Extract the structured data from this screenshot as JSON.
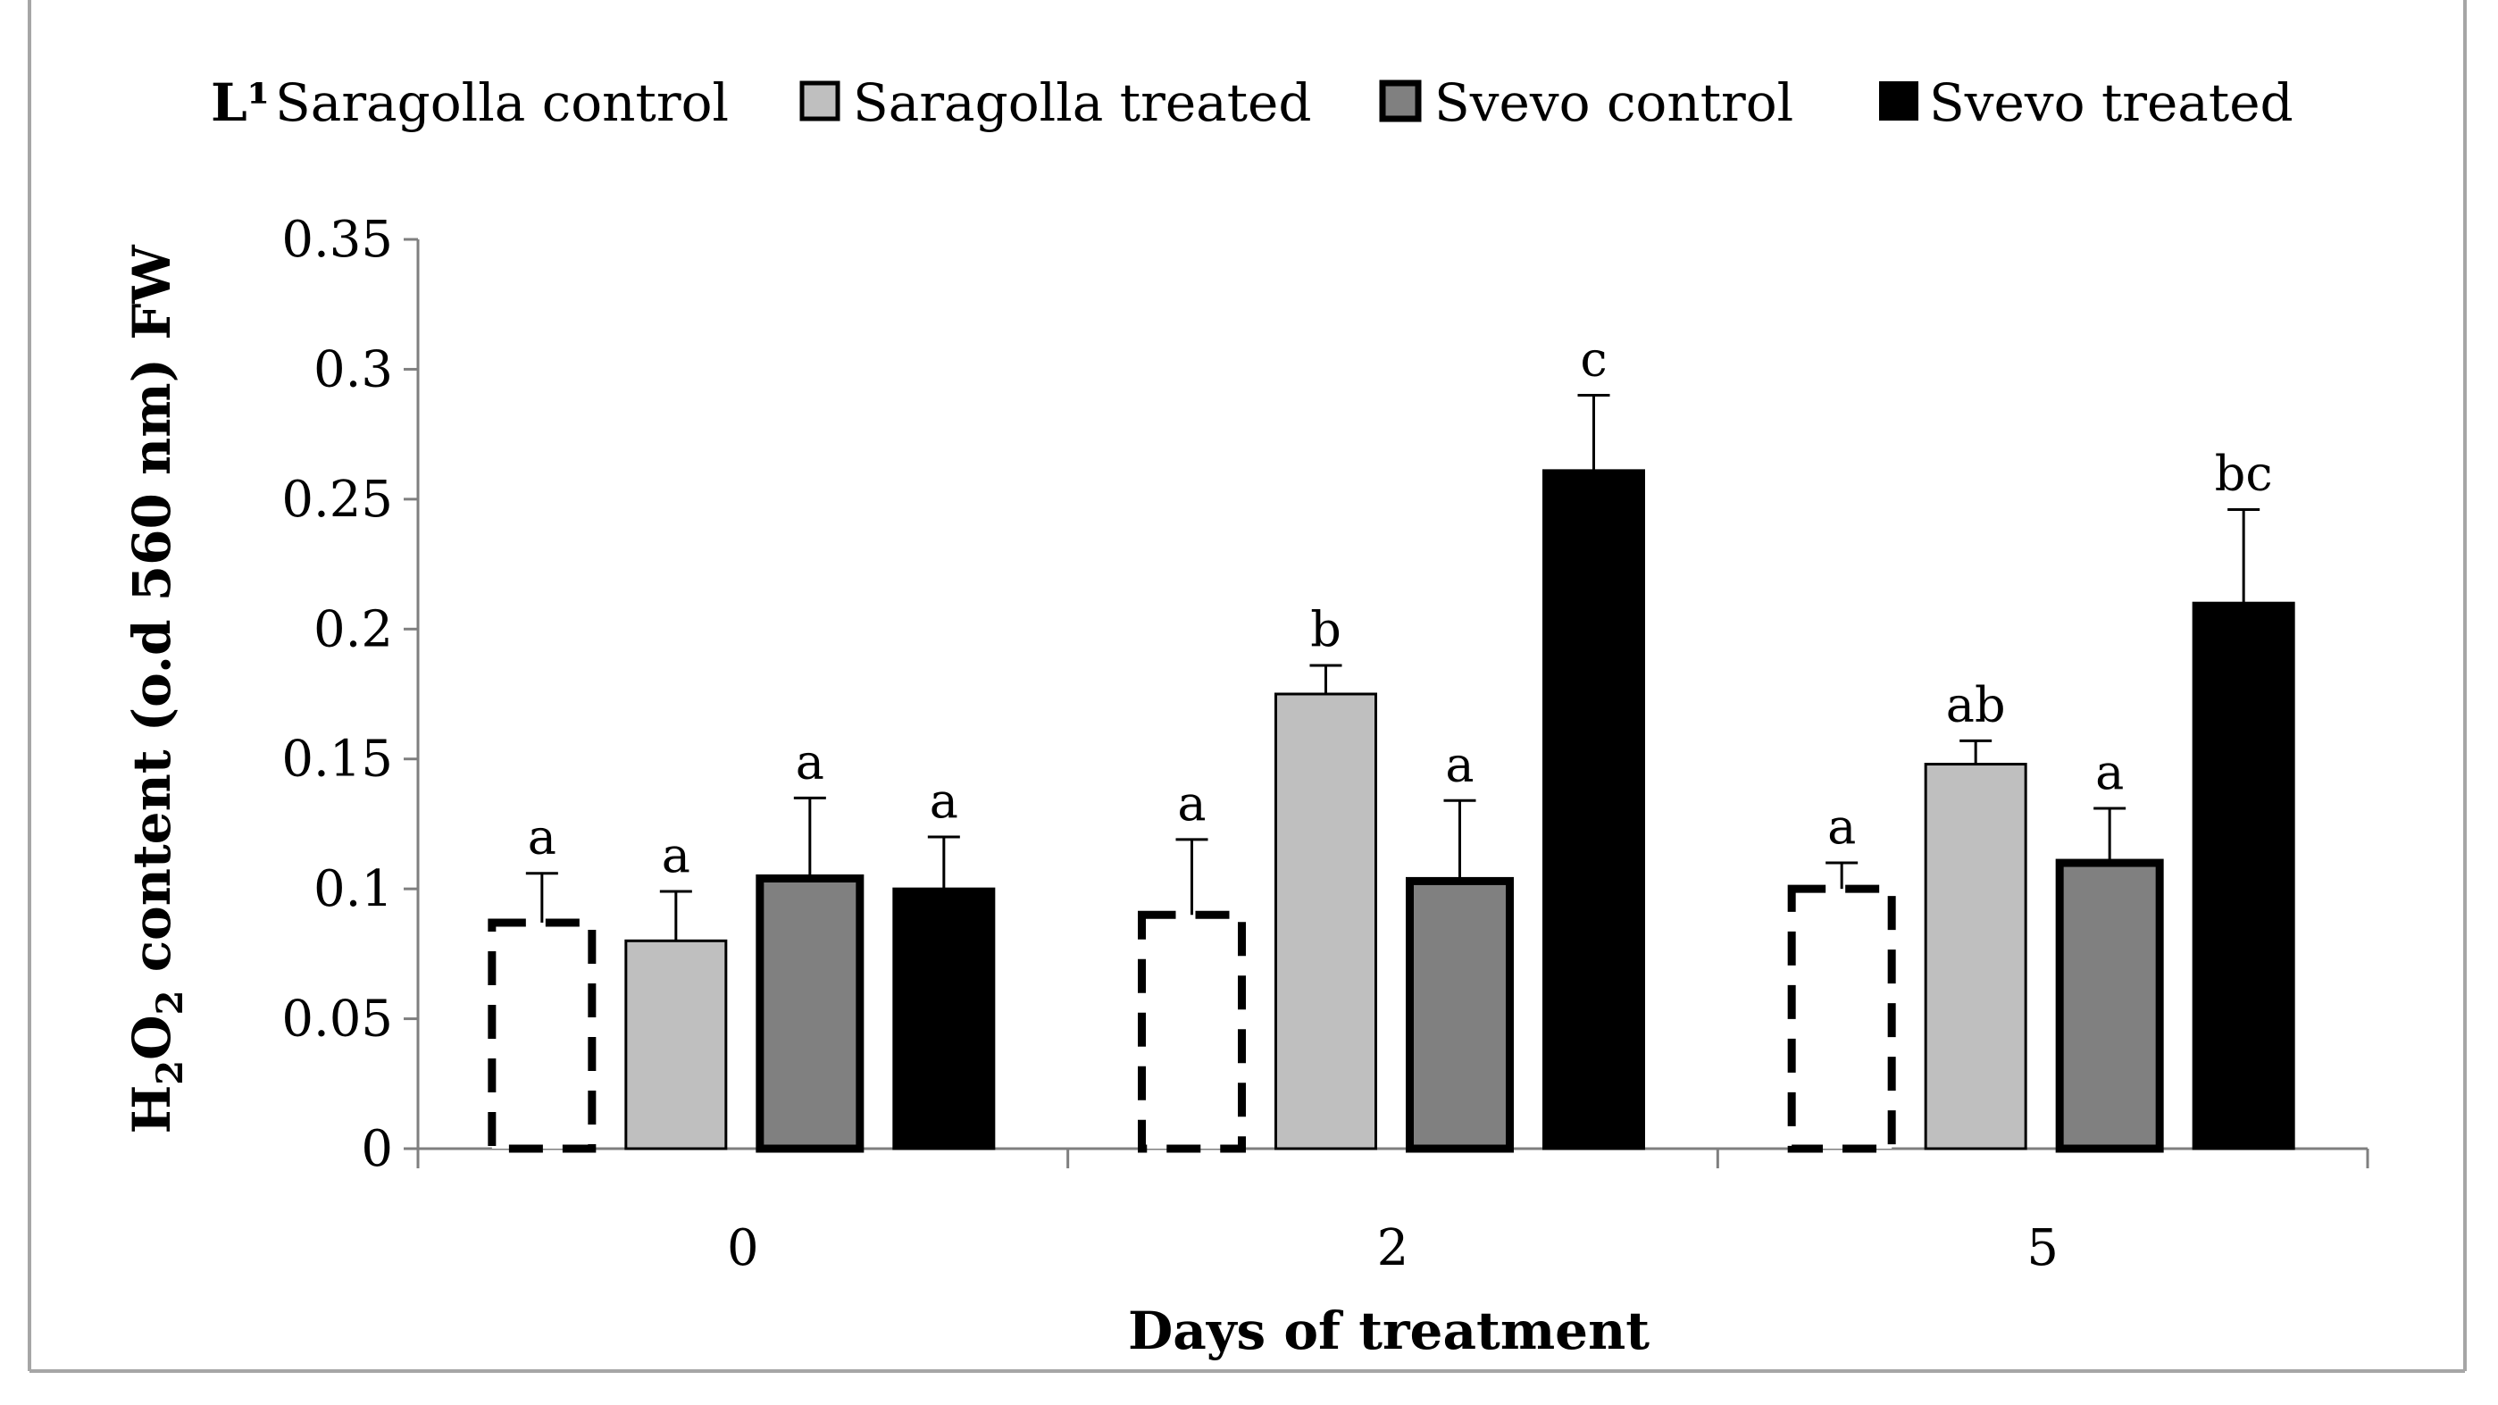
{
  "chart_data": {
    "type": "bar",
    "title": "",
    "xlabel": "Days of treatment",
    "ylabel": {
      "prefix": "H",
      "sub1": "2",
      "middle": "O",
      "sub2": "2",
      "suffix": " content (o.d  560 nm) FW"
    },
    "categories": [
      "0",
      "2",
      "5"
    ],
    "ylim": [
      0,
      0.35
    ],
    "yticks": [
      0,
      0.05,
      0.1,
      0.15,
      0.2,
      0.25,
      0.3,
      0.35
    ],
    "ytick_labels": [
      "0",
      "0.05",
      "0.1",
      "0.15",
      "0.2",
      "0.25",
      "0.3",
      "0.35"
    ],
    "legend_position": "top",
    "legend_marker_text": "L¹",
    "series": [
      {
        "name": "Saragolla control",
        "color": "#ffffff",
        "stroke": "#000000",
        "style": "dashed",
        "values": [
          0.087,
          0.09,
          0.1
        ],
        "errors": [
          0.019,
          0.029,
          0.01
        ],
        "letters": [
          "a",
          "a",
          "a"
        ]
      },
      {
        "name": "Saragolla treated",
        "color": "#bfbfbf",
        "stroke": "#000000",
        "style": "solid",
        "values": [
          0.08,
          0.175,
          0.148
        ],
        "errors": [
          0.019,
          0.011,
          0.009
        ],
        "letters": [
          "a",
          "b",
          "ab"
        ]
      },
      {
        "name": "Svevo control",
        "color": "#808080",
        "stroke": "#000000",
        "style": "thick",
        "values": [
          0.104,
          0.103,
          0.11
        ],
        "errors": [
          0.031,
          0.031,
          0.021
        ],
        "letters": [
          "a",
          "a",
          "a"
        ]
      },
      {
        "name": "Svevo treated",
        "color": "#000000",
        "stroke": "#000000",
        "style": "solid",
        "values": [
          0.1,
          0.261,
          0.21
        ],
        "errors": [
          0.02,
          0.029,
          0.036
        ],
        "letters": [
          "a",
          "c",
          "bc"
        ]
      }
    ]
  }
}
